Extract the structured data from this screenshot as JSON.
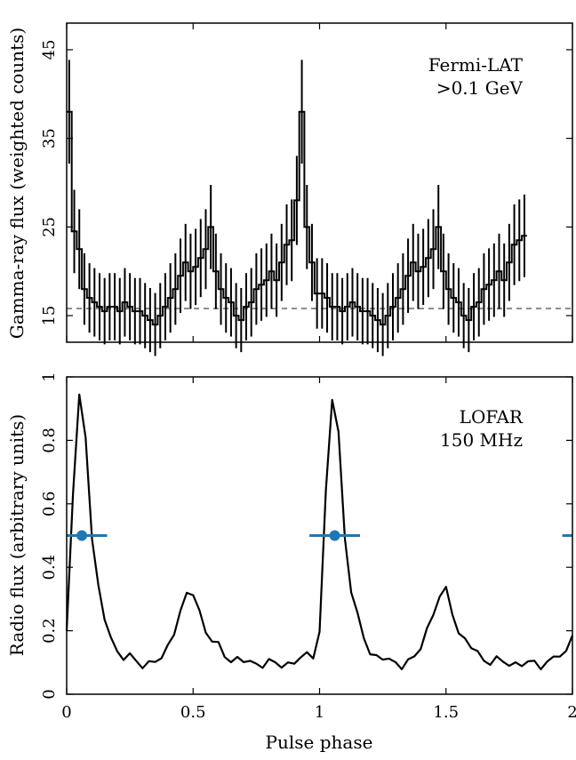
{
  "chart_data": [
    {
      "type": "step",
      "panel": "top",
      "annotation": [
        "Fermi-LAT",
        ">0.1 GeV"
      ],
      "ylabel": "Gamma-ray flux (weighted counts)",
      "xlabel": "",
      "xlim": [
        0,
        2
      ],
      "ylim": [
        12,
        48
      ],
      "yticks": [
        "15",
        "25",
        "35",
        "45"
      ],
      "xticks": [
        "0",
        "0.5",
        "1",
        "1.5",
        "2"
      ],
      "x_tick_labels_shown": false,
      "background_level": 15.8,
      "background_style": "dashed gray",
      "bin_width": 0.02,
      "values": [
        38.0,
        24.5,
        22.5,
        18.0,
        17.0,
        16.5,
        16.0,
        15.5,
        16.0,
        16.0,
        15.5,
        16.5,
        16.0,
        15.5,
        15.5,
        15.0,
        14.5,
        14.0,
        15.0,
        16.0,
        17.0,
        18.0,
        19.5,
        21.0,
        20.0,
        20.5,
        21.5,
        22.5,
        25.0,
        20.0,
        18.0,
        17.0,
        16.5,
        15.0,
        14.5,
        16.0,
        16.5,
        18.0,
        18.5,
        19.0,
        20.0,
        19.0,
        21.0,
        23.0,
        23.5,
        28.0,
        38.0,
        25.0,
        21.0,
        17.5,
        17.5,
        17.0,
        16.0,
        16.0,
        15.5,
        16.0,
        16.5,
        16.0,
        15.5,
        15.5,
        15.0,
        14.5,
        14.0,
        15.0,
        16.0,
        17.0,
        18.0,
        19.5,
        21.0,
        20.0,
        20.5,
        21.5,
        22.5,
        25.0,
        20.0,
        18.0,
        17.0,
        16.5,
        15.0,
        14.5,
        16.0,
        16.5,
        18.0,
        18.5,
        19.0,
        20.0,
        19.0,
        21.0,
        23.0,
        23.5,
        24.0
      ]
    },
    {
      "type": "line",
      "panel": "bottom",
      "annotation": [
        "LOFAR",
        "150 MHz"
      ],
      "ylabel": "Radio flux (arbitrary units)",
      "xlabel": "Pulse phase",
      "xlim": [
        0,
        2
      ],
      "ylim": [
        0,
        1
      ],
      "yticks": [
        "0",
        "0.2",
        "0.4",
        "0.6",
        "0.8",
        "1"
      ],
      "xticks": [
        "0",
        "0.5",
        "1",
        "1.5",
        "2"
      ],
      "profile_period": 1,
      "profile_samples": 40,
      "profile_interpolation": "smooth, with a small noise ripple",
      "profile_phase": [
        0.0,
        0.02,
        0.04,
        0.05,
        0.06,
        0.07,
        0.08,
        0.1,
        0.12,
        0.14,
        0.16,
        0.18,
        0.2,
        0.22,
        0.25,
        0.28,
        0.32,
        0.36,
        0.38,
        0.4,
        0.43,
        0.46,
        0.48,
        0.5,
        0.52,
        0.55,
        0.58,
        0.62,
        0.66,
        0.7,
        0.74,
        0.78,
        0.82,
        0.86,
        0.9,
        0.93,
        0.95,
        0.97,
        0.99,
        1.0
      ],
      "profile_flux": [
        0.2,
        0.55,
        0.86,
        0.93,
        0.96,
        0.9,
        0.75,
        0.5,
        0.35,
        0.26,
        0.21,
        0.17,
        0.14,
        0.12,
        0.11,
        0.1,
        0.1,
        0.1,
        0.11,
        0.15,
        0.22,
        0.28,
        0.31,
        0.32,
        0.28,
        0.2,
        0.16,
        0.13,
        0.11,
        0.1,
        0.1,
        0.1,
        0.09,
        0.1,
        0.1,
        0.11,
        0.12,
        0.13,
        0.14,
        0.2
      ],
      "markers": [
        {
          "x": 0.06,
          "y": 0.5,
          "xerr": 0.1
        },
        {
          "x": 1.06,
          "y": 0.5,
          "xerr": 0.1
        },
        {
          "x": 2.06,
          "y": 0.5,
          "xerr": 0.1
        }
      ],
      "marker_color": "#1f77b4"
    }
  ]
}
